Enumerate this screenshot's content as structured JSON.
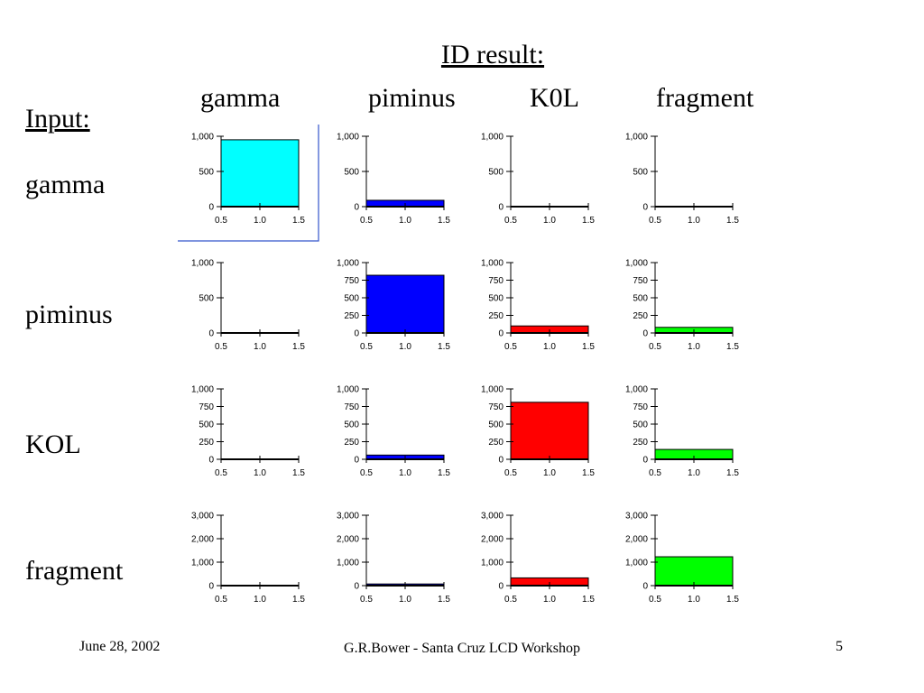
{
  "slide": {
    "result_title": "ID result:",
    "columns": [
      "gamma",
      "piminus",
      "K0L",
      "fragment"
    ],
    "input_title": "Input:",
    "rows": [
      "gamma",
      "piminus",
      "KOL",
      "fragment"
    ]
  },
  "footer": {
    "date": "June 28, 2002",
    "center": "G.R.Bower - Santa Cruz LCD Workshop",
    "page": "5"
  },
  "colors": {
    "gamma": "#00ffff",
    "piminus": "#0000ff",
    "K0L": "#ff0000",
    "fragment": "#00ff00"
  },
  "chart_data": [
    {
      "type": "bar",
      "row": "gamma",
      "col": "gamma",
      "xlim": [
        0.5,
        1.5
      ],
      "xticks": [
        "0.5",
        "1.0",
        "1.5"
      ],
      "ylim": [
        0,
        1000
      ],
      "yticks": [
        "0",
        "500",
        "1,000"
      ],
      "value": 950
    },
    {
      "type": "bar",
      "row": "gamma",
      "col": "piminus",
      "xlim": [
        0.5,
        1.5
      ],
      "xticks": [
        "0.5",
        "1.0",
        "1.5"
      ],
      "ylim": [
        0,
        1000
      ],
      "yticks": [
        "0",
        "500",
        "1,000"
      ],
      "value": 90
    },
    {
      "type": "bar",
      "row": "gamma",
      "col": "K0L",
      "xlim": [
        0.5,
        1.5
      ],
      "xticks": [
        "0.5",
        "1.0",
        "1.5"
      ],
      "ylim": [
        0,
        1000
      ],
      "yticks": [
        "0",
        "500",
        "1,000"
      ],
      "value": 0
    },
    {
      "type": "bar",
      "row": "gamma",
      "col": "fragment",
      "xlim": [
        0.5,
        1.5
      ],
      "xticks": [
        "0.5",
        "1.0",
        "1.5"
      ],
      "ylim": [
        0,
        1000
      ],
      "yticks": [
        "0",
        "500",
        "1,000"
      ],
      "value": 0
    },
    {
      "type": "bar",
      "row": "piminus",
      "col": "gamma",
      "xlim": [
        0.5,
        1.5
      ],
      "xticks": [
        "0.5",
        "1.0",
        "1.5"
      ],
      "ylim": [
        0,
        1000
      ],
      "yticks": [
        "0",
        "500",
        "1,000"
      ],
      "value": 0
    },
    {
      "type": "bar",
      "row": "piminus",
      "col": "piminus",
      "xlim": [
        0.5,
        1.5
      ],
      "xticks": [
        "0.5",
        "1.0",
        "1.5"
      ],
      "ylim": [
        0,
        1000
      ],
      "yticks": [
        "0",
        "250",
        "500",
        "750",
        "1,000"
      ],
      "value": 820
    },
    {
      "type": "bar",
      "row": "piminus",
      "col": "K0L",
      "xlim": [
        0.5,
        1.5
      ],
      "xticks": [
        "0.5",
        "1.0",
        "1.5"
      ],
      "ylim": [
        0,
        1000
      ],
      "yticks": [
        "0",
        "250",
        "500",
        "750",
        "1,000"
      ],
      "value": 100
    },
    {
      "type": "bar",
      "row": "piminus",
      "col": "fragment",
      "xlim": [
        0.5,
        1.5
      ],
      "xticks": [
        "0.5",
        "1.0",
        "1.5"
      ],
      "ylim": [
        0,
        1000
      ],
      "yticks": [
        "0",
        "250",
        "500",
        "750",
        "1,000"
      ],
      "value": 80
    },
    {
      "type": "bar",
      "row": "KOL",
      "col": "gamma",
      "xlim": [
        0.5,
        1.5
      ],
      "xticks": [
        "0.5",
        "1.0",
        "1.5"
      ],
      "ylim": [
        0,
        1000
      ],
      "yticks": [
        "0",
        "250",
        "500",
        "750",
        "1,000"
      ],
      "value": 0
    },
    {
      "type": "bar",
      "row": "KOL",
      "col": "piminus",
      "xlim": [
        0.5,
        1.5
      ],
      "xticks": [
        "0.5",
        "1.0",
        "1.5"
      ],
      "ylim": [
        0,
        1000
      ],
      "yticks": [
        "0",
        "250",
        "500",
        "750",
        "1,000"
      ],
      "value": 60
    },
    {
      "type": "bar",
      "row": "KOL",
      "col": "K0L",
      "xlim": [
        0.5,
        1.5
      ],
      "xticks": [
        "0.5",
        "1.0",
        "1.5"
      ],
      "ylim": [
        0,
        1000
      ],
      "yticks": [
        "0",
        "250",
        "500",
        "750",
        "1,000"
      ],
      "value": 810
    },
    {
      "type": "bar",
      "row": "KOL",
      "col": "fragment",
      "xlim": [
        0.5,
        1.5
      ],
      "xticks": [
        "0.5",
        "1.0",
        "1.5"
      ],
      "ylim": [
        0,
        1000
      ],
      "yticks": [
        "0",
        "250",
        "500",
        "750",
        "1,000"
      ],
      "value": 140
    },
    {
      "type": "bar",
      "row": "fragment",
      "col": "gamma",
      "xlim": [
        0.5,
        1.5
      ],
      "xticks": [
        "0.5",
        "1.0",
        "1.5"
      ],
      "ylim": [
        0,
        3000
      ],
      "yticks": [
        "0",
        "1,000",
        "2,000",
        "3,000"
      ],
      "value": 0
    },
    {
      "type": "bar",
      "row": "fragment",
      "col": "piminus",
      "xlim": [
        0.5,
        1.5
      ],
      "xticks": [
        "0.5",
        "1.0",
        "1.5"
      ],
      "ylim": [
        0,
        3000
      ],
      "yticks": [
        "0",
        "1,000",
        "2,000",
        "3,000"
      ],
      "value": 70
    },
    {
      "type": "bar",
      "row": "fragment",
      "col": "K0L",
      "xlim": [
        0.5,
        1.5
      ],
      "xticks": [
        "0.5",
        "1.0",
        "1.5"
      ],
      "ylim": [
        0,
        3000
      ],
      "yticks": [
        "0",
        "1,000",
        "2,000",
        "3,000"
      ],
      "value": 330
    },
    {
      "type": "bar",
      "row": "fragment",
      "col": "fragment",
      "xlim": [
        0.5,
        1.5
      ],
      "xticks": [
        "0.5",
        "1.0",
        "1.5"
      ],
      "ylim": [
        0,
        3000
      ],
      "yticks": [
        "0",
        "1,000",
        "2,000",
        "3,000"
      ],
      "value": 1230
    }
  ]
}
